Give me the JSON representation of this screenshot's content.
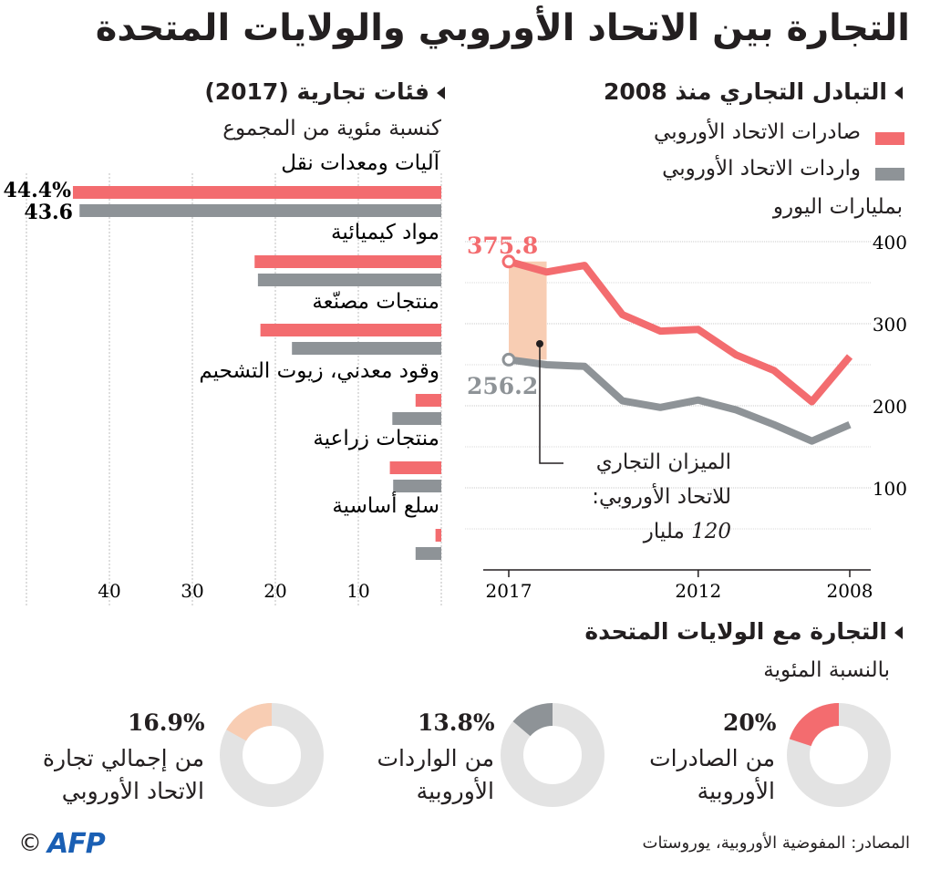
{
  "title": "التجارة بين الاتحاد الأوروبي والولايات المتحدة",
  "line_section": {
    "heading": "التبادل التجاري منذ 2008",
    "legend": [
      {
        "label": "صادرات الاتحاد الأوروبي",
        "color": "#f36c6f"
      },
      {
        "label": "واردات الاتحاد الأوروبي",
        "color": "#8e9397"
      }
    ],
    "unit": "بمليارات اليورو",
    "annotation_export": "375.8",
    "annotation_import": "256.2",
    "balance_line1": "الميزان التجاري",
    "balance_line2": "للاتحاد الأوروبي:",
    "balance_value": "120",
    "balance_unit": "مليار"
  },
  "bar_section": {
    "heading": "فئات تجارية (2017)",
    "subheading": "كنسبة مئوية من المجموع",
    "label_export_first": "44.4%",
    "label_import_first": "43.6"
  },
  "donut_section": {
    "heading": "التجارة مع الولايات المتحدة",
    "subheading": "بالنسبة المئوية",
    "items": [
      {
        "pct": "20%",
        "value": 20,
        "line1": "من الصادرات",
        "line2": "الأوروبية",
        "color": "#f36c6f"
      },
      {
        "pct": "13.8%",
        "value": 13.8,
        "line1": "من الواردات",
        "line2": "الأوروبية",
        "color": "#8e9397"
      },
      {
        "pct": "16.9%",
        "value": 16.9,
        "line1": "من إجمالي تجارة",
        "line2": "الاتحاد الأوروبي",
        "color": "#f8cdb3"
      }
    ]
  },
  "footer": {
    "source": "المصادر: المفوضية الأوروبية، يوروستات",
    "logo": "AFP",
    "copyright": "©"
  },
  "colors": {
    "export": "#f36c6f",
    "import": "#8e9397",
    "balance": "#f8cdb3",
    "donut_bg": "#e3e3e3"
  },
  "chart_data": [
    {
      "type": "line",
      "x": [
        2008,
        2009,
        2010,
        2011,
        2012,
        2013,
        2014,
        2015,
        2016,
        2017
      ],
      "x_ticks": [
        2008,
        2012,
        2017
      ],
      "x_direction": "right-to-left",
      "ylabel": "بمليارات اليورو",
      "ylim": [
        0,
        400
      ],
      "y_ticks": [
        100,
        200,
        300,
        400
      ],
      "series": [
        {
          "name": "صادرات الاتحاد الأوروبي",
          "values": [
            260,
            205,
            243,
            262,
            293,
            291,
            311,
            371,
            363,
            375.8
          ]
        },
        {
          "name": "واردات الاتحاد الأوروبي",
          "values": [
            177,
            157,
            177,
            195,
            207,
            198,
            206,
            248,
            250,
            256.2
          ]
        }
      ],
      "grid": true
    },
    {
      "type": "bar",
      "orientation": "horizontal",
      "x_direction": "right-to-left",
      "xlim": [
        0,
        50
      ],
      "x_ticks": [
        10,
        20,
        30,
        40
      ],
      "categories": [
        "آليات ومعدات نقل",
        "مواد كيميائية",
        "منتجات مصنّعة",
        "وقود معدني، زيوت التشحيم",
        "منتجات زراعية",
        "سلع أساسية"
      ],
      "series": [
        {
          "name": "صادرات الاتحاد الأوروبي",
          "values": [
            44.4,
            22.5,
            21.8,
            3.1,
            6.2,
            0.7
          ]
        },
        {
          "name": "واردات الاتحاد الأوروبي",
          "values": [
            43.6,
            22.1,
            18.0,
            5.9,
            5.8,
            3.1
          ]
        }
      ],
      "grid": true
    },
    {
      "type": "pie",
      "categories": [
        "من الصادرات الأوروبية",
        "من الواردات الأوروبية",
        "من إجمالي تجارة الاتحاد الأوروبي"
      ],
      "values": [
        20,
        13.8,
        16.9
      ]
    }
  ]
}
